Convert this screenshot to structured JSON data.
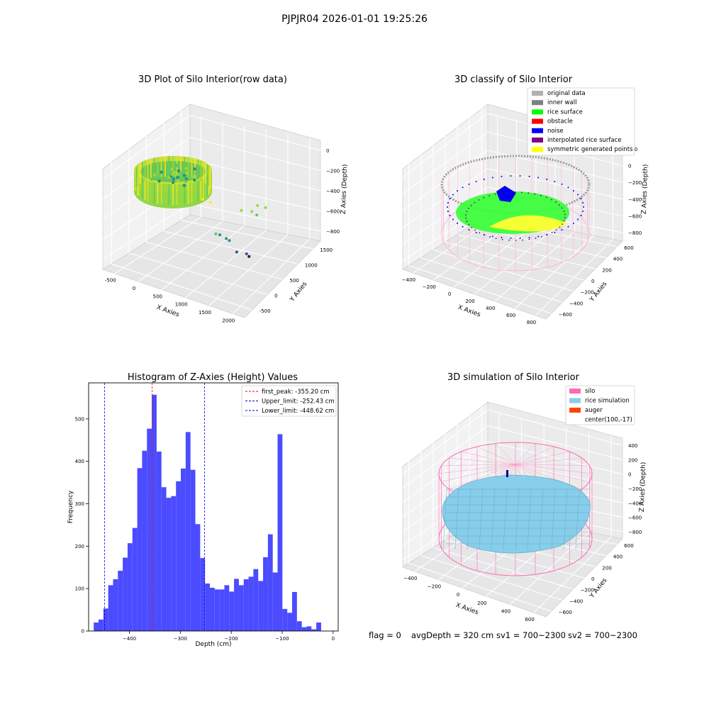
{
  "figure": {
    "suptitle": "PJPJR04 2026-01-01 19:25:26",
    "footer": [
      "flag = 0",
      "avgDepth = 320 cm",
      "sv1 = 700~2300",
      "sv2 = 700~2300"
    ]
  },
  "chart_data": [
    {
      "type": "scatter",
      "projection": "3d",
      "title": "3D Plot of Silo Interior(row data)",
      "xlabel": "X Axies",
      "ylabel": "Y Axies",
      "zlabel": "Z Axies (Depth)",
      "x_ticks": [
        "-500",
        "0",
        "500",
        "1000",
        "1500",
        "2000"
      ],
      "y_ticks": [
        "-500",
        "0",
        "500",
        "1000",
        "1500"
      ],
      "z_ticks": [
        "0",
        "−200",
        "−400",
        "−600",
        "−800"
      ],
      "colormap": "viridis",
      "outlier_points": [
        {
          "x": 700,
          "y": 300,
          "z": -320
        },
        {
          "x": 820,
          "y": 350,
          "z": -350
        },
        {
          "x": 1100,
          "y": 900,
          "z": -580
        },
        {
          "x": 1250,
          "y": 1000,
          "z": -600
        },
        {
          "x": 1300,
          "y": 1100,
          "z": -560
        },
        {
          "x": 1350,
          "y": 1000,
          "z": -620
        },
        {
          "x": 1400,
          "y": 1200,
          "z": -600
        },
        {
          "x": 900,
          "y": 400,
          "z": -700
        },
        {
          "x": 950,
          "y": 450,
          "z": -720
        },
        {
          "x": 1050,
          "y": 500,
          "z": -760
        },
        {
          "x": 1100,
          "y": 520,
          "z": -780
        },
        {
          "x": 1250,
          "y": 520,
          "z": -880
        },
        {
          "x": 1400,
          "y": 600,
          "z": -900
        },
        {
          "x": 1450,
          "y": 600,
          "z": -920
        }
      ]
    },
    {
      "type": "scatter",
      "projection": "3d",
      "title": "3D classify of Silo Interior",
      "xlabel": "X Axies",
      "ylabel": "Y Axies",
      "zlabel": "Z Axies (Depth)",
      "x_ticks": [
        "−400",
        "−200",
        "0",
        "200",
        "400",
        "600",
        "800"
      ],
      "y_ticks": [
        "−600",
        "−400",
        "−200",
        "0",
        "200",
        "400",
        "600"
      ],
      "z_ticks": [
        "200",
        "0",
        "−200",
        "−400",
        "−600",
        "−800"
      ],
      "legend_position": "top-right",
      "legend": [
        {
          "label": "original data",
          "color": "#b0b0b0"
        },
        {
          "label": "inner wall",
          "color": "#808080"
        },
        {
          "label": "rice surface",
          "color": "#00ff00"
        },
        {
          "label": "obstacle",
          "color": "#ff0000"
        },
        {
          "label": "noise",
          "color": "#0000ff"
        },
        {
          "label": "interpolated rice surface",
          "color": "#800080"
        },
        {
          "label": "symmetric generated points",
          "color": "#ffff00"
        }
      ]
    },
    {
      "type": "bar",
      "title": "Histogram of Z-Axies (Height) Values",
      "xlabel": "Depth (cm)",
      "ylabel": "Frequency",
      "xlim": [
        -480,
        10
      ],
      "ylim": [
        0,
        585
      ],
      "bin_width": 9.5,
      "bin_start": -470,
      "values": [
        20,
        27,
        53,
        108,
        122,
        142,
        173,
        207,
        243,
        384,
        425,
        477,
        557,
        423,
        339,
        314,
        318,
        353,
        383,
        469,
        380,
        252,
        172,
        112,
        102,
        98,
        98,
        108,
        93,
        123,
        108,
        122,
        128,
        146,
        118,
        174,
        228,
        138,
        464,
        52,
        43,
        92,
        23,
        9,
        11,
        4,
        20
      ],
      "x_ticks": [
        "−400",
        "−300",
        "−200",
        "−100",
        "0"
      ],
      "x_tick_values": [
        -400,
        -300,
        -200,
        -100,
        0
      ],
      "y_ticks": [
        "0",
        "100",
        "200",
        "300",
        "400",
        "500"
      ],
      "y_tick_values": [
        0,
        100,
        200,
        300,
        400,
        500
      ],
      "bar_color": "#4b4bff",
      "legend_position": "top-right",
      "reference_lines": [
        {
          "label": "first_peak: -355.20 cm",
          "x": -355.2,
          "color": "#ff0000"
        },
        {
          "label": "Upper_limit: -252.43 cm",
          "x": -252.43,
          "color": "#0000ff"
        },
        {
          "label": "Lower_limit: -448.62 cm",
          "x": -448.62,
          "color": "#0000ff"
        }
      ]
    },
    {
      "type": "surface",
      "projection": "3d",
      "title": "3D simulation of Silo Interior",
      "xlabel": "X Axies",
      "ylabel": "Y Axies",
      "zlabel": "Z Axies (Depth)",
      "x_ticks": [
        "−400",
        "−200",
        "0",
        "200",
        "400",
        "600"
      ],
      "y_ticks": [
        "−600",
        "−400",
        "−200",
        "0",
        "200",
        "400",
        "600"
      ],
      "z_ticks": [
        "400",
        "200",
        "0",
        "−200",
        "−400",
        "−600",
        "−800"
      ],
      "legend_position": "top-right",
      "legend": [
        {
          "label": "silo",
          "color": "#ff69b4"
        },
        {
          "label": "rice simulation",
          "color": "#87ceeb"
        },
        {
          "label": "auger",
          "color": "#ff4500"
        },
        {
          "label": "center(100,-17)",
          "color": "#ffffff"
        }
      ]
    }
  ]
}
